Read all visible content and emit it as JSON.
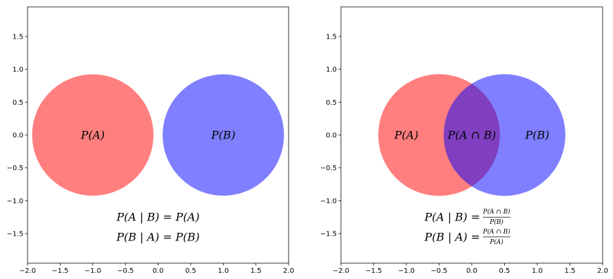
{
  "panels": [
    {
      "id": "independent",
      "circles": [
        {
          "name": "A",
          "cx": -1.0,
          "cy": 0.0,
          "r": 0.93,
          "color": "#ff0000",
          "alpha": 0.5
        },
        {
          "name": "B",
          "cx": 1.0,
          "cy": 0.0,
          "r": 0.93,
          "color": "#0000ff",
          "alpha": 0.5
        }
      ],
      "labels": [
        {
          "name": "label-pa",
          "text": "P(A)",
          "x": -1.0,
          "y": 0.0
        },
        {
          "name": "label-pb",
          "text": "P(B)",
          "x": 1.0,
          "y": 0.0
        }
      ],
      "formulas": [
        {
          "name": "formula-pa-given-b",
          "text": "P(A | B) = P(A)",
          "x": 0.0,
          "y": -1.25
        },
        {
          "name": "formula-pb-given-a",
          "text": "P(B | A) = P(B)",
          "x": 0.0,
          "y": -1.55
        }
      ]
    },
    {
      "id": "dependent",
      "circles": [
        {
          "name": "A",
          "cx": -0.5,
          "cy": 0.0,
          "r": 0.93,
          "color": "#ff0000",
          "alpha": 0.5
        },
        {
          "name": "B",
          "cx": 0.5,
          "cy": 0.0,
          "r": 0.93,
          "color": "#0000ff",
          "alpha": 0.5
        }
      ],
      "labels": [
        {
          "name": "label-pa",
          "text": "P(A)",
          "x": -1.0,
          "y": 0.0
        },
        {
          "name": "label-pab",
          "text": "P(A ∩ B)",
          "x": 0.0,
          "y": 0.0
        },
        {
          "name": "label-pb",
          "text": "P(B)",
          "x": 1.0,
          "y": 0.0
        }
      ],
      "fraction_formulas": [
        {
          "name": "formula-pa-given-b",
          "lhs": "P(A | B) =",
          "num": "P(A ∩ B)",
          "den": "P(B)",
          "x": 0.0,
          "y": -1.25
        },
        {
          "name": "formula-pb-given-a",
          "lhs": "P(B | A) =",
          "num": "P(A ∩ B)",
          "den": "P(A)",
          "x": 0.0,
          "y": -1.55
        }
      ]
    }
  ],
  "axes": {
    "xlim": [
      -2.0,
      2.0
    ],
    "ylim": [
      -1.95,
      1.95
    ],
    "xticks": [
      -2.0,
      -1.5,
      -1.0,
      -0.5,
      0.0,
      0.5,
      1.0,
      1.5,
      2.0
    ],
    "xtick_labels": [
      "−2.0",
      "−1.5",
      "−1.0",
      "−0.5",
      "0.0",
      "0.5",
      "1.0",
      "1.5",
      "2.0"
    ],
    "yticks": [
      1.5,
      1.0,
      0.5,
      0.0,
      -0.5,
      -1.0,
      -1.5
    ],
    "ytick_labels": [
      "1.5",
      "1.0",
      "0.5",
      "0.0",
      "−0.5",
      "−1.0",
      "−1.5"
    ]
  }
}
